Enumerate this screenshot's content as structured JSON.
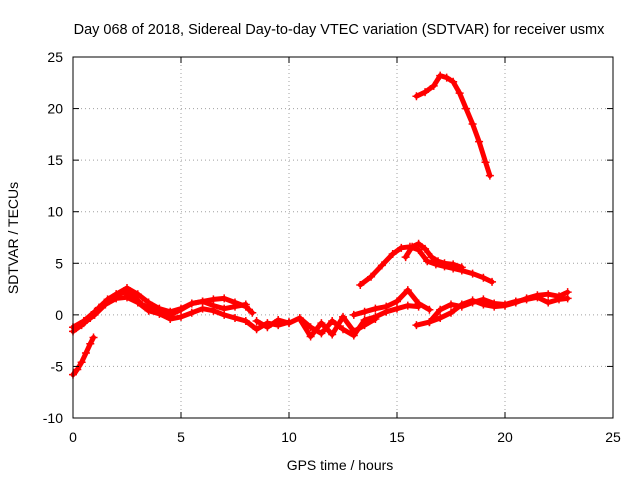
{
  "chart_data": {
    "type": "scatter",
    "title": "Day 068 of 2018, Sidereal Day-to-day VTEC variation (SDTVAR) for receiver usmx",
    "xlabel": "GPS time / hours",
    "ylabel": "SDTVAR / TECUs",
    "xlim": [
      0,
      25
    ],
    "ylim": [
      -10,
      25
    ],
    "xticks": [
      0,
      5,
      10,
      15,
      20,
      25
    ],
    "yticks": [
      -10,
      -5,
      0,
      5,
      10,
      15,
      20,
      25
    ],
    "grid": true,
    "marker_color": "#ff0000",
    "series": [
      {
        "name": "track-early-negative",
        "x": [
          0.0,
          0.2,
          0.4,
          0.6,
          0.8,
          0.95
        ],
        "y": [
          -5.8,
          -5.3,
          -4.6,
          -3.7,
          -2.8,
          -2.2
        ]
      },
      {
        "name": "track-morning-a",
        "x": [
          0.0,
          0.4,
          0.8,
          1.2,
          1.6,
          2.0,
          2.4,
          2.8,
          3.2,
          3.6,
          4.0,
          4.5,
          5.0,
          5.5,
          6.0,
          6.5,
          7.0,
          7.5,
          8.0,
          8.3
        ],
        "y": [
          -1.6,
          -1.0,
          -0.3,
          0.7,
          1.5,
          2.0,
          2.2,
          1.8,
          1.0,
          0.6,
          0.3,
          0.0,
          0.5,
          1.1,
          1.3,
          1.5,
          1.6,
          1.2,
          0.8,
          0.2
        ]
      },
      {
        "name": "track-morning-b",
        "x": [
          0.0,
          0.5,
          1.0,
          1.5,
          2.0,
          2.5,
          3.0,
          3.5,
          4.0,
          4.5,
          5.0,
          5.5,
          6.0,
          6.5,
          7.0,
          7.5,
          8.0
        ],
        "y": [
          -1.2,
          -0.6,
          0.3,
          1.2,
          2.0,
          2.6,
          2.0,
          1.2,
          0.6,
          0.3,
          0.6,
          1.1,
          1.3,
          0.9,
          0.6,
          0.8,
          1.0
        ]
      },
      {
        "name": "track-morning-c",
        "x": [
          0.5,
          1.0,
          1.5,
          2.0,
          2.5,
          3.0,
          3.5,
          4.0,
          4.5,
          5.0,
          5.5,
          6.0,
          6.5,
          7.0,
          7.5,
          8.0,
          8.5,
          9.0,
          9.5,
          10.0
        ],
        "y": [
          -0.8,
          0.0,
          1.0,
          1.6,
          1.7,
          1.2,
          0.4,
          0.1,
          -0.4,
          -0.2,
          0.2,
          0.6,
          0.4,
          0.0,
          -0.3,
          -0.6,
          -1.4,
          -0.8,
          -1.0,
          -0.7
        ]
      },
      {
        "name": "track-midday",
        "x": [
          8.5,
          9.0,
          9.5,
          10.0,
          10.5,
          11.0,
          11.5,
          12.0,
          12.5,
          13.0,
          13.5,
          14.0,
          14.5,
          15.0,
          15.5,
          16.0
        ],
        "y": [
          -0.6,
          -1.2,
          -0.5,
          -0.8,
          -0.3,
          -1.2,
          -1.8,
          -0.6,
          -1.4,
          -2.0,
          -0.5,
          -0.2,
          0.3,
          0.6,
          0.9,
          0.8
        ]
      },
      {
        "name": "track-midday-b",
        "x": [
          10.5,
          11.0,
          11.5,
          12.0,
          12.5,
          13.0,
          13.5,
          14.0
        ],
        "y": [
          -0.4,
          -2.1,
          -0.8,
          -1.9,
          -0.2,
          -1.6,
          -1.0,
          -0.4
        ]
      },
      {
        "name": "track-afternoon-a",
        "x": [
          13.0,
          13.5,
          14.0,
          14.5,
          15.0,
          15.5,
          16.0,
          16.5
        ],
        "y": [
          0.0,
          0.3,
          0.6,
          0.8,
          1.3,
          2.4,
          1.1,
          0.5
        ]
      },
      {
        "name": "track-afternoon-b",
        "x": [
          15.9,
          16.5,
          17.0,
          17.5,
          18.0,
          18.5,
          19.0,
          19.5,
          20.0,
          20.5,
          21.0,
          21.5,
          22.0,
          22.5,
          22.9
        ],
        "y": [
          -1.0,
          -0.7,
          -0.3,
          0.2,
          1.0,
          1.4,
          1.0,
          0.8,
          0.9,
          1.2,
          1.6,
          1.9,
          2.0,
          1.8,
          2.2
        ]
      },
      {
        "name": "track-afternoon-c",
        "x": [
          16.5,
          17.0,
          17.5,
          18.0,
          18.5,
          19.0,
          19.5,
          20.0,
          20.5,
          21.0,
          21.5,
          22.0,
          22.5,
          22.9
        ],
        "y": [
          -0.7,
          0.5,
          1.0,
          0.8,
          1.2,
          1.5,
          1.1,
          1.0,
          1.3,
          1.5,
          1.7,
          1.2,
          1.5,
          1.6
        ]
      },
      {
        "name": "track-hump",
        "x": [
          13.3,
          13.8,
          14.3,
          14.8,
          15.2,
          15.6,
          16.0,
          16.4,
          16.8,
          17.2,
          17.6,
          18.0,
          18.5,
          19.0,
          19.4
        ],
        "y": [
          2.9,
          3.7,
          4.8,
          5.9,
          6.5,
          6.6,
          6.3,
          5.2,
          4.9,
          4.7,
          4.5,
          4.3,
          4.0,
          3.6,
          3.2
        ]
      },
      {
        "name": "track-hump-b",
        "x": [
          15.4,
          15.7,
          16.0,
          16.3,
          16.6,
          16.9,
          17.2,
          17.6,
          18.0
        ],
        "y": [
          5.6,
          6.6,
          6.9,
          6.4,
          5.6,
          5.2,
          5.0,
          4.9,
          4.6
        ]
      },
      {
        "name": "track-high",
        "x": [
          15.9,
          16.3,
          16.7,
          17.0,
          17.3,
          17.6,
          17.9,
          18.2,
          18.5,
          18.8,
          19.1,
          19.3
        ],
        "y": [
          21.2,
          21.6,
          22.2,
          23.2,
          23.0,
          22.6,
          21.5,
          20.0,
          18.5,
          16.8,
          14.8,
          13.5
        ]
      }
    ]
  }
}
